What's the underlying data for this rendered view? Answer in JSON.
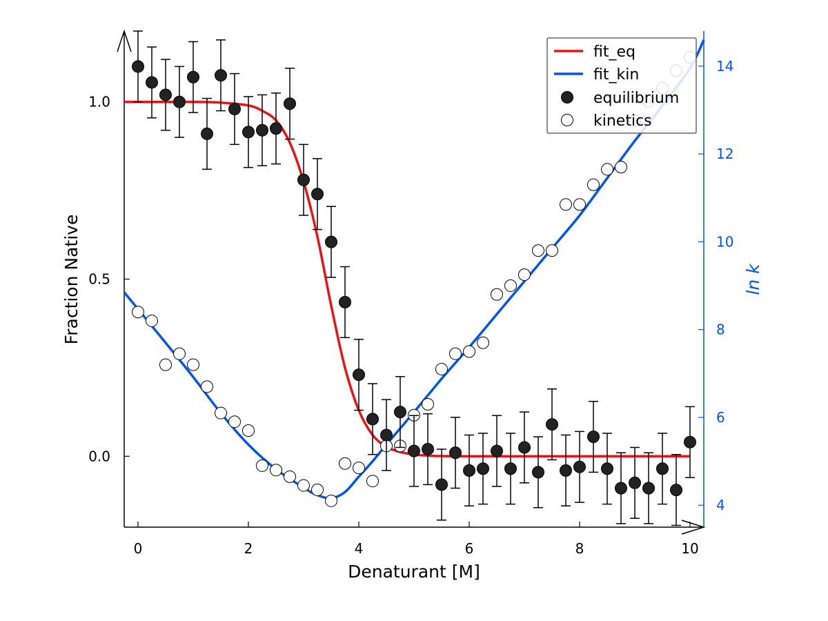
{
  "chart_data": {
    "type": "scatter",
    "title": "",
    "xlabel": "Denaturant [M]",
    "ylabel": "Fraction Native",
    "y2label": "ln k",
    "xlim": [
      -0.25,
      10.25
    ],
    "ylim": [
      -0.2,
      1.2
    ],
    "y2lim": [
      3.5,
      14.8
    ],
    "xticks": [
      0,
      2,
      4,
      6,
      8,
      10
    ],
    "yticks": [
      0.0,
      0.5,
      1.0
    ],
    "y2ticks": [
      4,
      6,
      8,
      10,
      12,
      14
    ],
    "grid": false,
    "legend_position": "top-right",
    "colors": {
      "fit_eq": "#ee1111",
      "fit_kin": "#0055ee",
      "y2_axis": "#0055ee",
      "equilibrium_fill": "#222222",
      "kinetics_fill": "#ffffff"
    },
    "legend": [
      "fit_eq",
      "fit_kin",
      "equilibrium",
      "kinetics"
    ],
    "series": [
      {
        "name": "equilibrium",
        "kind": "points-with-errorbars",
        "axis": "left",
        "error": 0.1,
        "x": [
          0,
          0.25,
          0.5,
          0.75,
          1.0,
          1.25,
          1.5,
          1.75,
          2.0,
          2.25,
          2.5,
          2.75,
          3.0,
          3.25,
          3.5,
          3.75,
          4.0,
          4.25,
          4.5,
          4.75,
          5.0,
          5.25,
          5.5,
          5.75,
          6.0,
          6.25,
          6.5,
          6.75,
          7.0,
          7.25,
          7.5,
          7.75,
          8.0,
          8.25,
          8.5,
          8.75,
          9.0,
          9.25,
          9.5,
          9.75,
          10.0
        ],
        "y": [
          1.1,
          1.055,
          1.02,
          1.0,
          1.07,
          0.91,
          1.075,
          0.98,
          0.915,
          0.92,
          0.925,
          0.995,
          0.78,
          0.74,
          0.605,
          0.435,
          0.23,
          0.105,
          0.06,
          0.125,
          0.015,
          0.02,
          -0.08,
          0.01,
          -0.04,
          -0.035,
          0.015,
          -0.035,
          0.025,
          -0.045,
          0.09,
          -0.04,
          -0.03,
          0.055,
          -0.035,
          -0.09,
          -0.075,
          -0.09,
          -0.035,
          -0.095,
          0.04
        ]
      },
      {
        "name": "kinetics",
        "kind": "points",
        "axis": "right",
        "x": [
          0,
          0.25,
          0.5,
          0.75,
          1.0,
          1.25,
          1.5,
          1.75,
          2.0,
          2.25,
          2.5,
          2.75,
          3.0,
          3.25,
          3.5,
          3.75,
          4.0,
          4.25,
          4.5,
          4.75,
          5.0,
          5.25,
          5.5,
          5.75,
          6.0,
          6.25,
          6.5,
          6.75,
          7.0,
          7.25,
          7.5,
          7.75,
          8.0,
          8.25,
          8.5,
          8.75,
          9.0,
          9.25,
          9.5,
          9.75,
          10.0
        ],
        "y": [
          8.4,
          8.2,
          7.2,
          7.45,
          7.2,
          6.7,
          6.1,
          5.9,
          5.7,
          4.9,
          4.8,
          4.65,
          4.45,
          4.35,
          4.1,
          4.95,
          4.85,
          4.55,
          5.35,
          5.35,
          6.05,
          6.3,
          7.1,
          7.45,
          7.5,
          7.7,
          8.8,
          9.0,
          9.25,
          9.8,
          9.8,
          10.85,
          10.85,
          11.3,
          11.65,
          11.7,
          12.75,
          13.2,
          13.5,
          13.9,
          14.2
        ]
      },
      {
        "name": "fit_eq",
        "kind": "line",
        "axis": "left",
        "x": [
          -0.25,
          0,
          0.5,
          1.0,
          1.5,
          2.0,
          2.25,
          2.5,
          2.75,
          3.0,
          3.25,
          3.5,
          3.75,
          4.0,
          4.25,
          4.5,
          4.75,
          5.0,
          5.25,
          5.5,
          6.0,
          7.0,
          8.0,
          9.0,
          10.0
        ],
        "y": [
          1.0,
          1.0,
          1.0,
          1.0,
          0.998,
          0.99,
          0.975,
          0.948,
          0.885,
          0.775,
          0.62,
          0.425,
          0.25,
          0.13,
          0.06,
          0.027,
          0.012,
          0.005,
          0.002,
          0.0005,
          0.0,
          0.0,
          0.0,
          0.0,
          0.0
        ]
      },
      {
        "name": "fit_kin",
        "kind": "line",
        "axis": "right",
        "x": [
          -0.25,
          0.5,
          1.0,
          1.5,
          2.0,
          2.5,
          3.0,
          3.25,
          3.5,
          3.75,
          4.0,
          4.25,
          4.5,
          5.0,
          5.5,
          6.0,
          6.5,
          7.0,
          7.5,
          8.0,
          8.5,
          9.0,
          9.5,
          10.0,
          10.25
        ],
        "y": [
          8.85,
          7.7,
          6.92,
          6.1,
          5.38,
          4.82,
          4.4,
          4.23,
          4.16,
          4.3,
          4.65,
          5.0,
          5.38,
          6.12,
          6.88,
          7.6,
          8.35,
          9.1,
          9.85,
          10.6,
          11.45,
          12.3,
          13.1,
          13.95,
          14.6
        ]
      }
    ]
  }
}
